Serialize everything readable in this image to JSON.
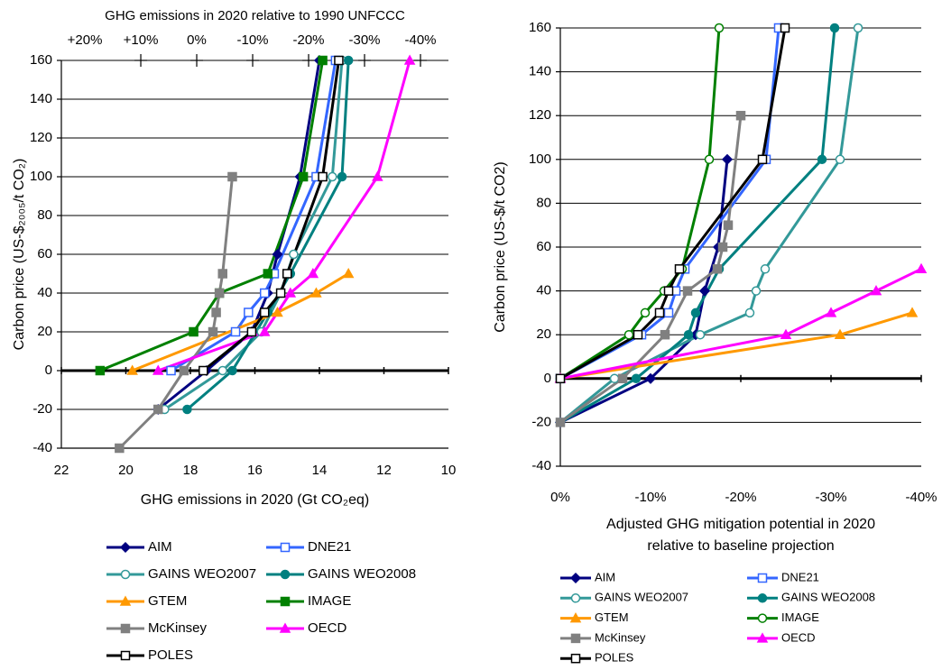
{
  "chart_data": [
    {
      "type": "line",
      "x2label": "GHG emissions in 2020 relative to 1990 UNFCCC",
      "ylabel": "Carbon price (US-$₂₀₀₅/t CO₂)",
      "xlabel": "GHG emissions in 2020 (Gt CO₂eq)",
      "xlim": [
        22,
        10
      ],
      "xticks": [
        22,
        20,
        18,
        16,
        14,
        12,
        10
      ],
      "x2lim": [
        24.2,
        -45
      ],
      "x2ticks": [
        {
          "value": 20,
          "label": "+20%"
        },
        {
          "value": 10,
          "label": "+10%"
        },
        {
          "value": 0,
          "label": "0%"
        },
        {
          "value": -10,
          "label": "-10%"
        },
        {
          "value": -20,
          "label": "-20%"
        },
        {
          "value": -30,
          "label": "-30%"
        },
        {
          "value": -40,
          "label": "-40%"
        }
      ],
      "ylim": [
        -40,
        160
      ],
      "yticks": [
        160,
        140,
        120,
        100,
        80,
        60,
        40,
        20,
        0,
        -20,
        -40
      ],
      "grid": true,
      "series": [
        {
          "name": "AIM",
          "color": "#000080",
          "marker": "diamond",
          "filled": true,
          "x": [
            19.0,
            17.5,
            16.1,
            15.6,
            15.3,
            14.6,
            14.0
          ],
          "values": [
            -20,
            0,
            20,
            40,
            60,
            100,
            160
          ]
        },
        {
          "name": "DNE21",
          "color": "#3366ff",
          "marker": "square",
          "filled": false,
          "x": [
            18.6,
            16.6,
            16.2,
            15.7,
            15.4,
            14.1,
            13.5
          ],
          "values": [
            0,
            20,
            30,
            40,
            50,
            100,
            160
          ]
        },
        {
          "name": "GAINS WEO2007",
          "color": "#339999",
          "marker": "circle",
          "filled": false,
          "x": [
            18.8,
            17.0,
            15.8,
            15.2,
            14.8,
            13.6,
            13.3
          ],
          "values": [
            -20,
            0,
            20,
            40,
            60,
            100,
            160
          ]
        },
        {
          "name": "GAINS WEO2008",
          "color": "#008080",
          "marker": "circle",
          "filled": true,
          "x": [
            18.1,
            16.7,
            15.6,
            14.9,
            13.3,
            13.1
          ],
          "values": [
            -20,
            0,
            30,
            50,
            100,
            160
          ]
        },
        {
          "name": "GTEM",
          "color": "#ff9900",
          "marker": "triangle",
          "filled": true,
          "x": [
            19.8,
            15.3,
            14.1,
            13.1
          ],
          "values": [
            0,
            30,
            40,
            50
          ]
        },
        {
          "name": "IMAGE",
          "color": "#008000",
          "marker": "square",
          "filled": true,
          "x": [
            20.8,
            17.9,
            17.1,
            15.6,
            14.5,
            13.9
          ],
          "values": [
            0,
            20,
            40,
            50,
            100,
            160
          ]
        },
        {
          "name": "McKinsey",
          "color": "#808080",
          "marker": "square",
          "filled": true,
          "x": [
            20.2,
            19.0,
            18.2,
            17.3,
            17.2,
            17.1,
            17.0,
            16.7
          ],
          "values": [
            -40,
            -20,
            0,
            20,
            30,
            40,
            50,
            100
          ]
        },
        {
          "name": "OECD",
          "color": "#ff00ff",
          "marker": "triangle",
          "filled": true,
          "x": [
            19.0,
            15.7,
            14.9,
            14.2,
            12.2,
            11.2
          ],
          "values": [
            0,
            20,
            40,
            50,
            100,
            160
          ]
        },
        {
          "name": "POLES",
          "color": "#000000",
          "marker": "square",
          "filled": false,
          "x": [
            17.6,
            16.1,
            15.7,
            15.2,
            15.0,
            13.9,
            13.4
          ],
          "values": [
            0,
            20,
            30,
            40,
            50,
            100,
            160
          ]
        }
      ]
    },
    {
      "type": "line",
      "ylabel": "Carbon price (US-$/t CO2)",
      "xlabel": [
        "Adjusted GHG mitigation potential in 2020",
        "relative to baseline projection"
      ],
      "xlim": [
        0,
        -40
      ],
      "xticks": [
        {
          "value": 0,
          "label": "0%"
        },
        {
          "value": -10,
          "label": "-10%"
        },
        {
          "value": -20,
          "label": "-20%"
        },
        {
          "value": -30,
          "label": "-30%"
        },
        {
          "value": -40,
          "label": "-40%"
        }
      ],
      "ylim": [
        -40,
        160
      ],
      "yticks": [
        160,
        140,
        120,
        100,
        80,
        60,
        40,
        20,
        0,
        -20,
        -40
      ],
      "grid": true,
      "series": [
        {
          "name": "AIM",
          "color": "#000080",
          "marker": "diamond",
          "filled": true,
          "x": [
            0,
            -10,
            -15,
            -16,
            -17.5,
            -18.5
          ],
          "values": [
            -20,
            0,
            20,
            40,
            60,
            100
          ]
        },
        {
          "name": "DNE21",
          "color": "#3366ff",
          "marker": "square",
          "filled": false,
          "x": [
            0,
            -9,
            -12,
            -12.8,
            -13.8,
            -22.8,
            -24.2
          ],
          "values": [
            0,
            20,
            30,
            40,
            50,
            100,
            160
          ]
        },
        {
          "name": "GAINS WEO2007",
          "color": "#339999",
          "marker": "circle",
          "filled": false,
          "x": [
            0,
            -6,
            -15.5,
            -21,
            -21.7,
            -22.7,
            -31,
            -33
          ],
          "values": [
            -20,
            0,
            20,
            30,
            40,
            50,
            100,
            160
          ]
        },
        {
          "name": "GAINS WEO2008",
          "color": "#008080",
          "marker": "circle",
          "filled": true,
          "x": [
            0,
            -8.4,
            -14.2,
            -15,
            -17.6,
            -29,
            -30.4
          ],
          "values": [
            -20,
            0,
            20,
            30,
            50,
            100,
            160
          ]
        },
        {
          "name": "GTEM",
          "color": "#ff9900",
          "marker": "triangle",
          "filled": true,
          "x": [
            0,
            -31,
            -39
          ],
          "values": [
            0,
            20,
            30
          ]
        },
        {
          "name": "IMAGE",
          "color": "#008000",
          "marker": "circle",
          "filled": false,
          "x": [
            0,
            -7.6,
            -9.4,
            -11.5,
            -13.5,
            -16.5,
            -17.6
          ],
          "values": [
            0,
            20,
            30,
            40,
            50,
            100,
            160
          ]
        },
        {
          "name": "McKinsey",
          "color": "#808080",
          "marker": "square",
          "filled": true,
          "x": [
            0,
            -6.9,
            -11.6,
            -14.1,
            -17.4,
            -18,
            -18.6,
            -20
          ],
          "values": [
            -20,
            0,
            20,
            40,
            50,
            60,
            70,
            120
          ]
        },
        {
          "name": "OECD",
          "color": "#ff00ff",
          "marker": "triangle",
          "filled": true,
          "x": [
            0,
            -25,
            -30,
            -35,
            -40
          ],
          "values": [
            0,
            20,
            30,
            40,
            50
          ]
        },
        {
          "name": "POLES",
          "color": "#000000",
          "marker": "square",
          "filled": false,
          "x": [
            0,
            -8.6,
            -11,
            -12,
            -13.2,
            -22.4,
            -24.9
          ],
          "values": [
            0,
            20,
            30,
            40,
            50,
            100,
            160
          ]
        }
      ]
    }
  ]
}
